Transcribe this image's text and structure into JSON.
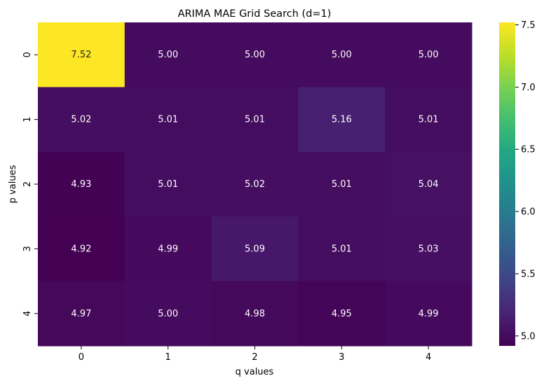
{
  "chart_data": {
    "type": "heatmap",
    "title": "ARIMA MAE Grid Search (d=1)",
    "xlabel": "q values",
    "ylabel": "p values",
    "x_categories": [
      "0",
      "1",
      "2",
      "3",
      "4"
    ],
    "y_categories": [
      "0",
      "1",
      "2",
      "3",
      "4"
    ],
    "values": [
      [
        7.52,
        5.0,
        5.0,
        5.0,
        5.0
      ],
      [
        5.02,
        5.01,
        5.01,
        5.16,
        5.01
      ],
      [
        4.93,
        5.01,
        5.02,
        5.01,
        5.04
      ],
      [
        4.92,
        4.99,
        5.09,
        5.01,
        5.03
      ],
      [
        4.97,
        5.0,
        4.98,
        4.95,
        4.99
      ]
    ],
    "labels": [
      [
        "7.52",
        "5.00",
        "5.00",
        "5.00",
        "5.00"
      ],
      [
        "5.02",
        "5.01",
        "5.01",
        "5.16",
        "5.01"
      ],
      [
        "4.93",
        "5.01",
        "5.02",
        "5.01",
        "5.04"
      ],
      [
        "4.92",
        "4.99",
        "5.09",
        "5.01",
        "5.03"
      ],
      [
        "4.97",
        "5.00",
        "4.98",
        "4.95",
        "4.99"
      ]
    ],
    "colormap": "viridis",
    "vmin": 4.92,
    "vmax": 7.52,
    "colorbar_ticks": [
      5.0,
      5.5,
      6.0,
      6.5,
      7.0,
      7.5
    ],
    "colorbar_tick_labels": [
      "5.0",
      "5.5",
      "6.0",
      "6.5",
      "7.0",
      "7.5"
    ]
  }
}
